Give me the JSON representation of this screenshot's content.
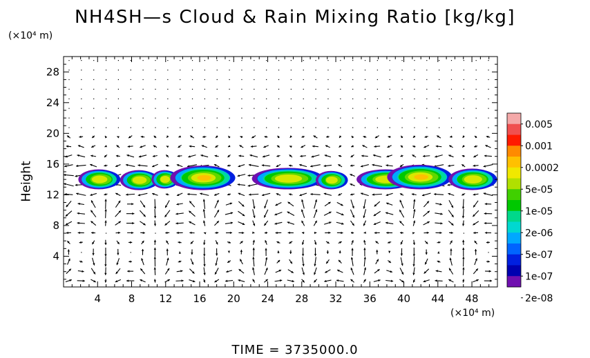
{
  "chart_data": {
    "type": "heatmap",
    "title": "NH4SH—s Cloud & Rain Mixing Ratio [kg/kg]",
    "x_unit": "(×10⁴ m)",
    "y_unit": "(×10⁴ m)",
    "ylabel": "Height",
    "xlim": [
      0,
      51
    ],
    "ylim": [
      0,
      30
    ],
    "x_ticks": [
      "4",
      "8",
      "12",
      "16",
      "20",
      "24",
      "28",
      "32",
      "36",
      "40",
      "44",
      "48"
    ],
    "y_ticks": [
      "4",
      "8",
      "12",
      "16",
      "20",
      "24",
      "28"
    ],
    "colorbar": {
      "labels": [
        "0.005",
        "0.001",
        "0.0002",
        "5e-05",
        "1e-05",
        "2e-06",
        "5e-07",
        "1e-07",
        "2e-08"
      ],
      "colors": [
        "#f4a9a9",
        "#f05050",
        "#ff1a00",
        "#ff8a00",
        "#ffc000",
        "#f0e800",
        "#b0e000",
        "#40d000",
        "#00c800",
        "#00d88a",
        "#00d8d0",
        "#00a8ff",
        "#0064ff",
        "#0020e0",
        "#0000b0",
        "#7010b0"
      ]
    },
    "clouds": [
      {
        "x_center": 4.3,
        "x_halfwidth": 2.4,
        "y_center": 14.1,
        "y_halfheight": 1.3,
        "peak": "5e-05"
      },
      {
        "x_center": 9.0,
        "x_halfwidth": 2.2,
        "y_center": 14.0,
        "y_halfheight": 1.3,
        "peak": "5e-05"
      },
      {
        "x_center": 12.0,
        "x_halfwidth": 1.5,
        "y_center": 14.1,
        "y_halfheight": 1.2,
        "peak": "5e-05"
      },
      {
        "x_center": 16.5,
        "x_halfwidth": 3.8,
        "y_center": 14.3,
        "y_halfheight": 1.6,
        "peak": "0.0002"
      },
      {
        "x_center": 26.5,
        "x_halfwidth": 4.2,
        "y_center": 14.2,
        "y_halfheight": 1.4,
        "peak": "5e-05"
      },
      {
        "x_center": 31.6,
        "x_halfwidth": 1.8,
        "y_center": 14.0,
        "y_halfheight": 1.2,
        "peak": "5e-05"
      },
      {
        "x_center": 38.0,
        "x_halfwidth": 3.4,
        "y_center": 14.1,
        "y_halfheight": 1.3,
        "peak": "5e-05"
      },
      {
        "x_center": 42.0,
        "x_halfwidth": 3.8,
        "y_center": 14.4,
        "y_halfheight": 1.6,
        "peak": "0.0002"
      },
      {
        "x_center": 48.2,
        "x_halfwidth": 2.8,
        "y_center": 14.1,
        "y_halfheight": 1.4,
        "peak": "5e-05"
      }
    ],
    "wind_vectors": "dense field of black arrows; strong horizontal flow near 12-15, circulation cells below 10, small dots above 20",
    "grid": false,
    "legend": "right colorbar"
  },
  "time_label": "TIME  =  3735000.0"
}
